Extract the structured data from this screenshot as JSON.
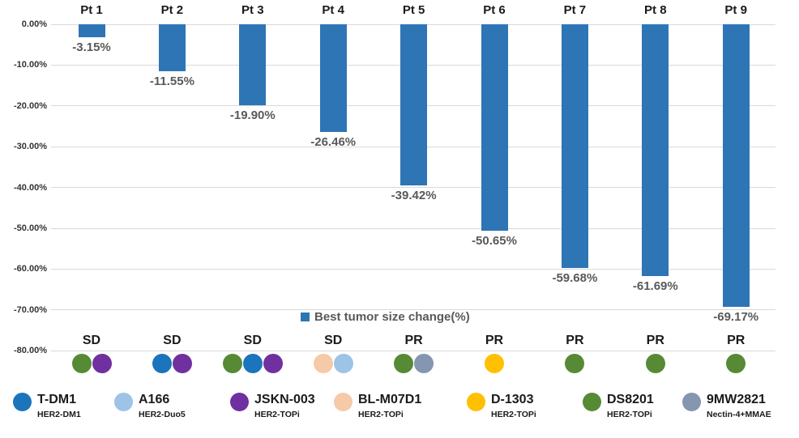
{
  "chart_data": {
    "type": "bar",
    "title": "",
    "legend_label": "Best tumor size change(%)",
    "categories": [
      "Pt 1",
      "Pt 2",
      "Pt 3",
      "Pt 4",
      "Pt 5",
      "Pt 6",
      "Pt 7",
      "Pt 8",
      "Pt 9"
    ],
    "values": [
      -3.15,
      -11.55,
      -19.9,
      -26.46,
      -39.42,
      -50.65,
      -59.68,
      -61.69,
      -69.17
    ],
    "value_labels": [
      "-3.15%",
      "-11.55%",
      "-19.90%",
      "-26.46%",
      "-39.42%",
      "-50.65%",
      "-59.68%",
      "-61.69%",
      "-69.17%"
    ],
    "y_ticks": [
      "0.00%",
      "-10.00%",
      "-20.00%",
      "-30.00%",
      "-40.00%",
      "-50.00%",
      "-60.00%",
      "-70.00%",
      "-80.00%"
    ],
    "ylim": [
      0,
      -80
    ],
    "grid": true,
    "bar_color": "#2E75B6",
    "legend_position": "inside-bottom-center"
  },
  "responses": [
    "SD",
    "SD",
    "SD",
    "SD",
    "PR",
    "PR",
    "PR",
    "PR",
    "PR"
  ],
  "patient_treatments": [
    [
      "DS8201",
      "JSKN-003"
    ],
    [
      "T-DM1",
      "JSKN-003"
    ],
    [
      "DS8201",
      "T-DM1",
      "JSKN-003"
    ],
    [
      "BL-M07D1",
      "A166"
    ],
    [
      "DS8201",
      "9MW2821"
    ],
    [
      "D-1303"
    ],
    [
      "DS8201"
    ],
    [
      "DS8201"
    ],
    [
      "DS8201"
    ]
  ],
  "drug_legend": [
    {
      "name": "T-DM1",
      "target": "HER2-DM1",
      "color": "#1B74BC"
    },
    {
      "name": "A166",
      "target": "HER2-Duo5",
      "color": "#9DC3E6"
    },
    {
      "name": "JSKN-003",
      "target": "HER2-TOPi",
      "color": "#7030A0"
    },
    {
      "name": "BL-M07D1",
      "target": "HER2-TOPi",
      "color": "#F6C9A9"
    },
    {
      "name": "D-1303",
      "target": "HER2-TOPi",
      "color": "#FFC000"
    },
    {
      "name": "DS8201",
      "target": "HER2-TOPi",
      "color": "#568A34"
    },
    {
      "name": "9MW2821",
      "target": "Nectin-4+MMAE",
      "color": "#8496B0"
    }
  ]
}
